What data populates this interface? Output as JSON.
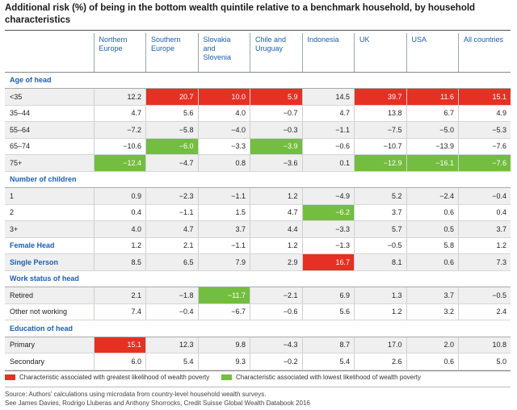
{
  "title": "Additional risk (%) of being in the bottom wealth quintile relative to a benchmark household, by household characteristics",
  "columns": [
    "Northern Europe",
    "Southern Europe",
    "Slovakia and Slovenia",
    "Chile and Uruguay",
    "Indonesia",
    "UK",
    "USA",
    "All countries"
  ],
  "colors": {
    "red": "#e63023",
    "green": "#73bd40",
    "accent": "#1a5fb4"
  },
  "sections": [
    {
      "heading": "Age of head",
      "rows": [
        {
          "label": "<35",
          "values": [
            "12.2",
            "20.7",
            "10.0",
            "5.9",
            "14.5",
            "39.7",
            "11.6",
            "15.1"
          ],
          "flags": [
            "",
            "red",
            "red",
            "red",
            "",
            "red",
            "red",
            "red"
          ]
        },
        {
          "label": "35–44",
          "values": [
            "4.7",
            "5.6",
            "4.0",
            "−0.7",
            "4.7",
            "13.8",
            "6.7",
            "4.9"
          ],
          "flags": [
            "",
            "",
            "",
            "",
            "",
            "",
            "",
            ""
          ]
        },
        {
          "label": "55–64",
          "values": [
            "−7.2",
            "−5.8",
            "−4.0",
            "−0.3",
            "−1.1",
            "−7.5",
            "−5.0",
            "−5.3"
          ],
          "flags": [
            "",
            "",
            "",
            "",
            "",
            "",
            "",
            ""
          ]
        },
        {
          "label": "65–74",
          "values": [
            "−10.6",
            "−6.0",
            "−3.3",
            "−3.9",
            "−0.6",
            "−10.7",
            "−13.9",
            "−7.6"
          ],
          "flags": [
            "",
            "green",
            "",
            "green",
            "",
            "",
            "",
            ""
          ]
        },
        {
          "label": "75+",
          "values": [
            "−12.4",
            "−4.7",
            "0.8",
            "−3.6",
            "0.1",
            "−12.9",
            "−16.1",
            "−7.6"
          ],
          "flags": [
            "green",
            "",
            "",
            "",
            "",
            "green",
            "green",
            "green"
          ]
        }
      ]
    },
    {
      "heading": "Number of children",
      "rows": [
        {
          "label": "1",
          "values": [
            "0.9",
            "−2.3",
            "−1.1",
            "1.2",
            "−4.9",
            "5.2",
            "−2.4",
            "−0.4"
          ],
          "flags": [
            "",
            "",
            "",
            "",
            "",
            "",
            "",
            ""
          ]
        },
        {
          "label": "2",
          "values": [
            "0.4",
            "−1.1",
            "1.5",
            "4.7",
            "−6.2",
            "3.7",
            "0.6",
            "0.4"
          ],
          "flags": [
            "",
            "",
            "",
            "",
            "green",
            "",
            "",
            ""
          ]
        },
        {
          "label": "3+",
          "values": [
            "4.0",
            "4.7",
            "3.7",
            "4.4",
            "−3.3",
            "5.7",
            "0.5",
            "3.7"
          ],
          "flags": [
            "",
            "",
            "",
            "",
            "",
            "",
            "",
            ""
          ]
        }
      ]
    },
    {
      "heading": "",
      "rows": [
        {
          "label": "Female Head",
          "blue": true,
          "values": [
            "1.2",
            "2.1",
            "−1.1",
            "1.2",
            "−1.3",
            "−0.5",
            "5.8",
            "1.2"
          ],
          "flags": [
            "",
            "",
            "",
            "",
            "",
            "",
            "",
            ""
          ]
        },
        {
          "label": "Single Person",
          "blue": true,
          "values": [
            "8.5",
            "6.5",
            "7.9",
            "2.9",
            "16.7",
            "8.1",
            "0.6",
            "7.3"
          ],
          "flags": [
            "",
            "",
            "",
            "",
            "red",
            "",
            "",
            ""
          ]
        }
      ]
    },
    {
      "heading": "Work status of head",
      "rows": [
        {
          "label": "Retired",
          "values": [
            "2.1",
            "−1.8",
            "−11.7",
            "−2.1",
            "6.9",
            "1.3",
            "3.7",
            "−0.5"
          ],
          "flags": [
            "",
            "",
            "green",
            "",
            "",
            "",
            "",
            ""
          ]
        },
        {
          "label": "Other not working",
          "values": [
            "7.4",
            "−0.4",
            "−6.7",
            "−0.6",
            "5.6",
            "1.2",
            "3.2",
            "2.4"
          ],
          "flags": [
            "",
            "",
            "",
            "",
            "",
            "",
            "",
            ""
          ]
        }
      ]
    },
    {
      "heading": "Education of head",
      "rows": [
        {
          "label": "Primary",
          "values": [
            "15.1",
            "12.3",
            "9.8",
            "−4.3",
            "8.7",
            "17.0",
            "2.0",
            "10.8"
          ],
          "flags": [
            "red",
            "",
            "",
            "",
            "",
            "",
            "",
            ""
          ]
        },
        {
          "label": "Secondary",
          "values": [
            "6.0",
            "5.4",
            "9.3",
            "−0.2",
            "5.4",
            "2.6",
            "0.6",
            "5.0"
          ],
          "flags": [
            "",
            "",
            "",
            "",
            "",
            "",
            "",
            ""
          ]
        }
      ]
    }
  ],
  "legend": {
    "red_label": "Characteristic associated with greatest likelihood of wealth poverty",
    "green_label": "Characteristic associated with lowest likelihood of wealth poverty"
  },
  "source": {
    "line1": "Source: Authors' calculations using microdata from country-level household wealth surveys.",
    "line2": "See James Davies, Rodrigo Lluberas and Anthony Shorrocks, Credit Suisse Global Wealth Databook 2016"
  }
}
